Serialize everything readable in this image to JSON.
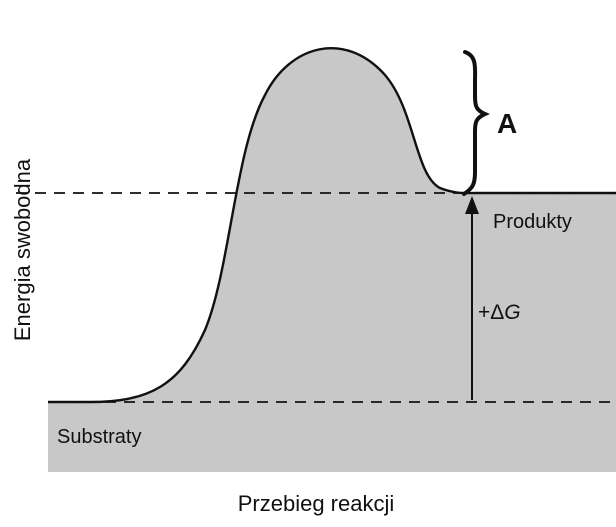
{
  "diagram": {
    "y_axis_label": "Energia swobodna",
    "x_axis_label": "Przebieg reakcji",
    "label_products": "Produkty",
    "label_substrates": "Substraty",
    "label_brace": "A",
    "label_delta_prefix": "+Δ",
    "label_delta_symbol": "G",
    "colors": {
      "fill": "#c8c8c8",
      "line": "#111111",
      "background": "#ffffff"
    }
  }
}
